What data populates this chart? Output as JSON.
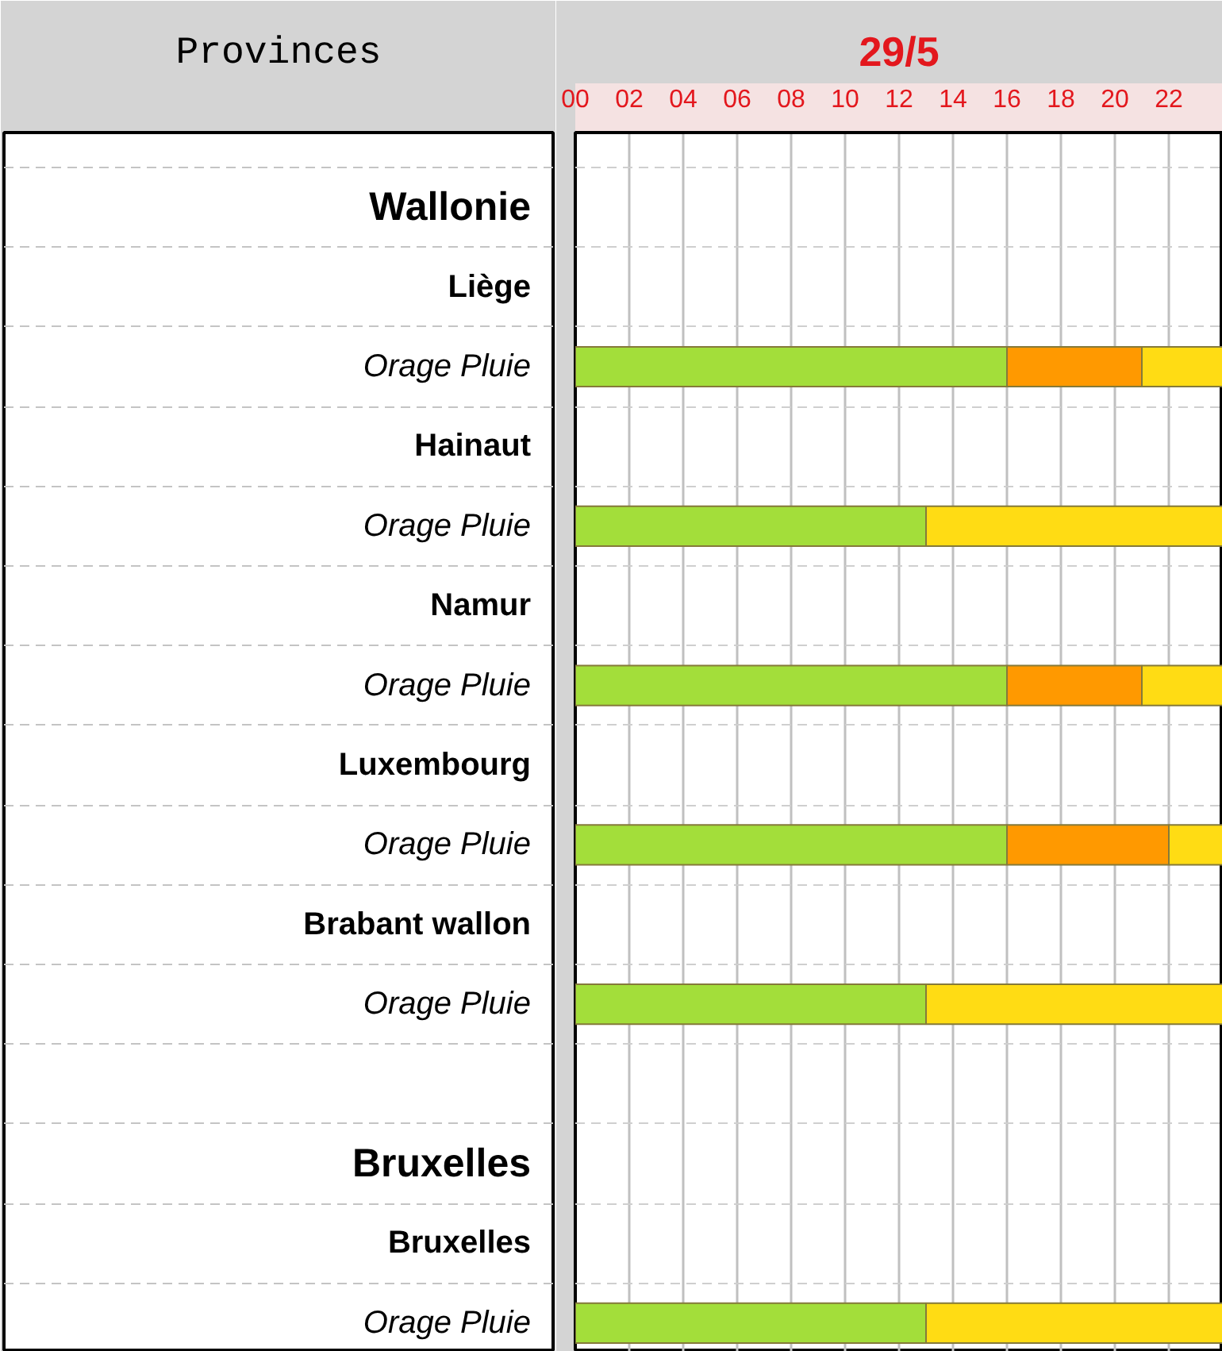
{
  "chart_data": {
    "type": "bar",
    "orientation": "horizontal",
    "stacked": true,
    "title": "29/5",
    "ylabel": "Provinces",
    "categories": [
      "Wallonie",
      "Liège",
      "Orage Pluie",
      "Hainaut",
      "Orage Pluie",
      "Namur",
      "Orage Pluie",
      "Luxembourg",
      "Orage Pluie",
      "Brabant wallon",
      "Orage Pluie",
      null,
      "Bruxelles",
      "Bruxelles",
      "Orage Pluie"
    ],
    "series": [
      {
        "color": "#a3de3a",
        "values": [
          null,
          null,
          16,
          null,
          13,
          null,
          16,
          null,
          16,
          null,
          13,
          null,
          null,
          null,
          13
        ]
      },
      {
        "color": "#ff9900",
        "values": [
          null,
          null,
          5,
          null,
          null,
          null,
          5,
          null,
          6,
          null,
          null,
          null,
          null,
          null,
          null
        ]
      },
      {
        "color": "#ffdc14",
        "values": [
          null,
          null,
          3,
          null,
          11,
          null,
          3,
          null,
          2,
          null,
          11,
          null,
          null,
          null,
          11
        ]
      }
    ],
    "xlim": [
      0,
      24
    ],
    "xticks": [
      {
        "value": 0,
        "label": "00"
      },
      {
        "value": 2,
        "label": "02"
      },
      {
        "value": 4,
        "label": "04"
      },
      {
        "value": 6,
        "label": "06"
      },
      {
        "value": 8,
        "label": "08"
      },
      10,
      12,
      14,
      16,
      18,
      20,
      22
    ],
    "grid": true
  }
}
